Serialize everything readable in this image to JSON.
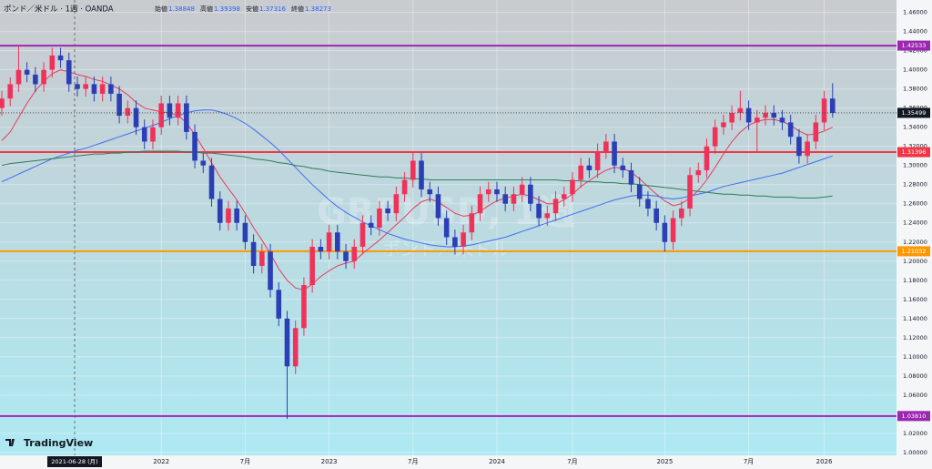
{
  "header": {
    "symbol": "ポンド／米ドル · 1週 · OANDA",
    "ohlc": [
      {
        "label": "始値",
        "value": 1.38848
      },
      {
        "label": "高値",
        "value": 1.39398
      },
      {
        "label": "安値",
        "value": 1.37316
      },
      {
        "label": "終値",
        "value": 1.38273
      }
    ]
  },
  "watermark": {
    "symbol": "GBPUSD, 1週",
    "name": "ポンド／米ドル"
  },
  "logo": "TradingView",
  "chart_data": {
    "type": "candlestick",
    "categories": [
      null,
      null,
      null,
      null,
      null,
      null,
      null,
      null,
      null,
      null,
      null,
      null,
      null,
      null,
      null,
      null,
      null,
      null,
      null,
      "2022",
      null,
      null,
      null,
      null,
      null,
      null,
      null,
      null,
      null,
      "7月",
      null,
      null,
      null,
      null,
      null,
      null,
      null,
      null,
      null,
      "2023",
      null,
      null,
      null,
      null,
      null,
      null,
      null,
      null,
      null,
      "7月",
      null,
      null,
      null,
      null,
      null,
      null,
      null,
      null,
      null,
      "2024",
      null,
      null,
      null,
      null,
      null,
      null,
      null,
      null,
      "7月",
      null,
      null,
      null,
      null,
      null,
      null,
      null,
      null,
      null,
      null,
      "2025",
      null,
      null,
      null,
      null,
      null,
      null,
      null,
      null,
      null,
      "7月",
      null,
      null,
      null,
      null,
      null,
      null,
      null,
      null,
      "2026",
      null
    ],
    "candles": [
      [
        1.36,
        1.378,
        1.352,
        1.37
      ],
      [
        1.37,
        1.392,
        1.362,
        1.385
      ],
      [
        1.385,
        1.425,
        1.377,
        1.4
      ],
      [
        1.4,
        1.408,
        1.387,
        1.395
      ],
      [
        1.395,
        1.403,
        1.377,
        1.385
      ],
      [
        1.385,
        1.408,
        1.377,
        1.4
      ],
      [
        1.4,
        1.423,
        1.392,
        1.415
      ],
      [
        1.415,
        1.423,
        1.402,
        1.41
      ],
      [
        1.41,
        1.418,
        1.377,
        1.385
      ],
      [
        1.385,
        1.393,
        1.372,
        1.38
      ],
      [
        1.38,
        1.393,
        1.372,
        1.385
      ],
      [
        1.385,
        1.393,
        1.367,
        1.375
      ],
      [
        1.375,
        1.393,
        1.367,
        1.385
      ],
      [
        1.385,
        1.393,
        1.367,
        1.375
      ],
      [
        1.375,
        1.383,
        1.344,
        1.352
      ],
      [
        1.352,
        1.368,
        1.344,
        1.36
      ],
      [
        1.36,
        1.368,
        1.332,
        1.34
      ],
      [
        1.34,
        1.348,
        1.317,
        1.325
      ],
      [
        1.325,
        1.348,
        1.317,
        1.34
      ],
      [
        1.34,
        1.373,
        1.332,
        1.365
      ],
      [
        1.365,
        1.373,
        1.342,
        1.35
      ],
      [
        1.35,
        1.373,
        1.342,
        1.365
      ],
      [
        1.365,
        1.373,
        1.327,
        1.335
      ],
      [
        1.335,
        1.343,
        1.297,
        1.305
      ],
      [
        1.305,
        1.313,
        1.292,
        1.3
      ],
      [
        1.3,
        1.308,
        1.257,
        1.265
      ],
      [
        1.265,
        1.273,
        1.232,
        1.24
      ],
      [
        1.24,
        1.263,
        1.232,
        1.255
      ],
      [
        1.255,
        1.263,
        1.232,
        1.24
      ],
      [
        1.24,
        1.248,
        1.212,
        1.22
      ],
      [
        1.22,
        1.228,
        1.187,
        1.195
      ],
      [
        1.195,
        1.218,
        1.187,
        1.21
      ],
      [
        1.21,
        1.218,
        1.162,
        1.17
      ],
      [
        1.17,
        1.178,
        1.132,
        1.14
      ],
      [
        1.14,
        1.148,
        1.035,
        1.09
      ],
      [
        1.09,
        1.138,
        1.082,
        1.13
      ],
      [
        1.13,
        1.183,
        1.122,
        1.175
      ],
      [
        1.175,
        1.223,
        1.167,
        1.215
      ],
      [
        1.215,
        1.223,
        1.202,
        1.21
      ],
      [
        1.21,
        1.238,
        1.202,
        1.23
      ],
      [
        1.23,
        1.238,
        1.202,
        1.21
      ],
      [
        1.21,
        1.218,
        1.192,
        1.2
      ],
      [
        1.2,
        1.223,
        1.192,
        1.215
      ],
      [
        1.215,
        1.248,
        1.207,
        1.24
      ],
      [
        1.24,
        1.248,
        1.227,
        1.235
      ],
      [
        1.235,
        1.263,
        1.227,
        1.255
      ],
      [
        1.255,
        1.263,
        1.242,
        1.25
      ],
      [
        1.25,
        1.278,
        1.242,
        1.27
      ],
      [
        1.27,
        1.293,
        1.262,
        1.285
      ],
      [
        1.285,
        1.313,
        1.277,
        1.305
      ],
      [
        1.305,
        1.313,
        1.267,
        1.275
      ],
      [
        1.275,
        1.283,
        1.262,
        1.27
      ],
      [
        1.27,
        1.278,
        1.237,
        1.245
      ],
      [
        1.245,
        1.253,
        1.217,
        1.225
      ],
      [
        1.225,
        1.233,
        1.207,
        1.215
      ],
      [
        1.215,
        1.238,
        1.207,
        1.23
      ],
      [
        1.23,
        1.258,
        1.222,
        1.25
      ],
      [
        1.25,
        1.278,
        1.242,
        1.27
      ],
      [
        1.27,
        1.283,
        1.262,
        1.275
      ],
      [
        1.275,
        1.283,
        1.262,
        1.27
      ],
      [
        1.27,
        1.278,
        1.252,
        1.26
      ],
      [
        1.26,
        1.278,
        1.252,
        1.27
      ],
      [
        1.27,
        1.288,
        1.262,
        1.28
      ],
      [
        1.28,
        1.288,
        1.252,
        1.26
      ],
      [
        1.26,
        1.268,
        1.237,
        1.245
      ],
      [
        1.245,
        1.258,
        1.237,
        1.25
      ],
      [
        1.25,
        1.273,
        1.242,
        1.265
      ],
      [
        1.265,
        1.278,
        1.257,
        1.27
      ],
      [
        1.27,
        1.293,
        1.262,
        1.285
      ],
      [
        1.285,
        1.308,
        1.277,
        1.3
      ],
      [
        1.3,
        1.308,
        1.287,
        1.295
      ],
      [
        1.295,
        1.323,
        1.287,
        1.315
      ],
      [
        1.315,
        1.333,
        1.307,
        1.325
      ],
      [
        1.325,
        1.333,
        1.292,
        1.3
      ],
      [
        1.3,
        1.308,
        1.287,
        1.295
      ],
      [
        1.295,
        1.303,
        1.272,
        1.28
      ],
      [
        1.28,
        1.288,
        1.257,
        1.265
      ],
      [
        1.265,
        1.273,
        1.247,
        1.255
      ],
      [
        1.255,
        1.263,
        1.232,
        1.24
      ],
      [
        1.24,
        1.248,
        1.21,
        1.22
      ],
      [
        1.22,
        1.253,
        1.212,
        1.245
      ],
      [
        1.245,
        1.263,
        1.237,
        1.255
      ],
      [
        1.255,
        1.298,
        1.247,
        1.29
      ],
      [
        1.29,
        1.303,
        1.282,
        1.295
      ],
      [
        1.295,
        1.328,
        1.287,
        1.32
      ],
      [
        1.32,
        1.348,
        1.312,
        1.34
      ],
      [
        1.34,
        1.353,
        1.332,
        1.345
      ],
      [
        1.345,
        1.363,
        1.337,
        1.355
      ],
      [
        1.355,
        1.378,
        1.347,
        1.36
      ],
      [
        1.36,
        1.368,
        1.337,
        1.345
      ],
      [
        1.345,
        1.358,
        1.315,
        1.35
      ],
      [
        1.35,
        1.363,
        1.342,
        1.355
      ],
      [
        1.355,
        1.363,
        1.342,
        1.35
      ],
      [
        1.35,
        1.358,
        1.337,
        1.345
      ],
      [
        1.345,
        1.353,
        1.322,
        1.33
      ],
      [
        1.33,
        1.338,
        1.302,
        1.31
      ],
      [
        1.31,
        1.333,
        1.302,
        1.325
      ],
      [
        1.325,
        1.353,
        1.317,
        1.345
      ],
      [
        1.345,
        1.378,
        1.337,
        1.37
      ],
      [
        1.37,
        1.386,
        1.35,
        1.355
      ]
    ],
    "up_color": "#f0325a",
    "down_color": "#2a3fb5",
    "series": [
      {
        "color": "#e83b5e",
        "values": [
          1.326,
          1.335,
          1.35,
          1.365,
          1.378,
          1.388,
          1.396,
          1.4,
          1.398,
          1.395,
          1.393,
          1.39,
          1.388,
          1.384,
          1.38,
          1.374,
          1.366,
          1.36,
          1.358,
          1.356,
          1.355,
          1.352,
          1.345,
          1.332,
          1.318,
          1.303,
          1.288,
          1.276,
          1.264,
          1.25,
          1.235,
          1.222,
          1.208,
          1.192,
          1.18,
          1.172,
          1.17,
          1.176,
          1.184,
          1.19,
          1.195,
          1.198,
          1.2,
          1.208,
          1.215,
          1.222,
          1.23,
          1.238,
          1.246,
          1.255,
          1.262,
          1.265,
          1.262,
          1.256,
          1.25,
          1.247,
          1.248,
          1.252,
          1.258,
          1.263,
          1.266,
          1.268,
          1.27,
          1.268,
          1.264,
          1.26,
          1.26,
          1.264,
          1.27,
          1.278,
          1.284,
          1.29,
          1.295,
          1.298,
          1.297,
          1.293,
          1.286,
          1.278,
          1.27,
          1.263,
          1.258,
          1.26,
          1.266,
          1.274,
          1.285,
          1.298,
          1.312,
          1.325,
          1.335,
          1.342,
          1.346,
          1.348,
          1.348,
          1.346,
          1.342,
          1.336,
          1.332,
          1.333,
          1.336,
          1.34
        ]
      },
      {
        "color": "#3d6ef0",
        "values": [
          1.283,
          1.287,
          1.291,
          1.295,
          1.299,
          1.303,
          1.307,
          1.31,
          1.313,
          1.316,
          1.318,
          1.321,
          1.324,
          1.327,
          1.33,
          1.333,
          1.336,
          1.339,
          1.342,
          1.345,
          1.349,
          1.352,
          1.355,
          1.357,
          1.358,
          1.358,
          1.356,
          1.353,
          1.349,
          1.344,
          1.338,
          1.331,
          1.324,
          1.316,
          1.307,
          1.298,
          1.289,
          1.28,
          1.272,
          1.264,
          1.257,
          1.251,
          1.246,
          1.241,
          1.237,
          1.233,
          1.229,
          1.226,
          1.223,
          1.221,
          1.219,
          1.217,
          1.216,
          1.215,
          1.215,
          1.216,
          1.217,
          1.219,
          1.221,
          1.223,
          1.225,
          1.228,
          1.231,
          1.234,
          1.237,
          1.24,
          1.243,
          1.246,
          1.249,
          1.252,
          1.255,
          1.258,
          1.261,
          1.264,
          1.266,
          1.268,
          1.269,
          1.269,
          1.268,
          1.266,
          1.265,
          1.266,
          1.268,
          1.27,
          1.272,
          1.275,
          1.278,
          1.28,
          1.282,
          1.284,
          1.286,
          1.288,
          1.29,
          1.292,
          1.295,
          1.298,
          1.301,
          1.304,
          1.307,
          1.31
        ]
      },
      {
        "color": "#2e7d5b",
        "values": [
          1.3,
          1.302,
          1.303,
          1.304,
          1.305,
          1.306,
          1.307,
          1.308,
          1.309,
          1.31,
          1.311,
          1.312,
          1.312,
          1.313,
          1.313,
          1.314,
          1.314,
          1.315,
          1.315,
          1.315,
          1.315,
          1.315,
          1.314,
          1.314,
          1.313,
          1.313,
          1.312,
          1.311,
          1.31,
          1.309,
          1.307,
          1.306,
          1.305,
          1.303,
          1.302,
          1.3,
          1.299,
          1.297,
          1.296,
          1.294,
          1.293,
          1.292,
          1.291,
          1.29,
          1.289,
          1.288,
          1.288,
          1.287,
          1.287,
          1.286,
          1.286,
          1.285,
          1.285,
          1.285,
          1.285,
          1.285,
          1.285,
          1.285,
          1.285,
          1.285,
          1.285,
          1.285,
          1.285,
          1.285,
          1.285,
          1.285,
          1.285,
          1.284,
          1.284,
          1.284,
          1.283,
          1.283,
          1.282,
          1.282,
          1.281,
          1.281,
          1.28,
          1.279,
          1.278,
          1.277,
          1.276,
          1.275,
          1.274,
          1.273,
          1.272,
          1.271,
          1.27,
          1.27,
          1.269,
          1.269,
          1.268,
          1.268,
          1.267,
          1.267,
          1.267,
          1.266,
          1.266,
          1.266,
          1.267,
          1.268
        ]
      }
    ],
    "ylim": [
      0.997,
      1.473
    ],
    "yticks": [
      {
        "value": 1.0,
        "label": "1.00000"
      },
      {
        "value": 1.02,
        "label": "1.02000"
      },
      {
        "value": 1.04,
        "label": "1.04000"
      },
      {
        "value": 1.06,
        "label": "1.06000"
      },
      {
        "value": 1.08,
        "label": "1.08000"
      },
      {
        "value": 1.1,
        "label": "1.10000"
      },
      {
        "value": 1.12,
        "label": "1.12000"
      },
      {
        "value": 1.14,
        "label": "1.14000"
      },
      {
        "value": 1.16,
        "label": "1.16000"
      },
      {
        "value": 1.18,
        "label": "1.18000"
      },
      {
        "value": 1.2,
        "label": "1.20000"
      },
      {
        "value": 1.22,
        "label": "1.22000"
      },
      {
        "value": 1.24,
        "label": "1.24000"
      },
      {
        "value": 1.26,
        "label": "1.26000"
      },
      {
        "value": 1.28,
        "label": "1.28000"
      },
      {
        "value": 1.3,
        "label": "1.30000"
      },
      {
        "value": 1.32,
        "label": "1.32000"
      },
      {
        "value": 1.34,
        "label": "1.34000"
      },
      {
        "value": 1.36,
        "label": "1.36000"
      },
      {
        "value": 1.38,
        "label": "1.38000"
      },
      {
        "value": 1.4,
        "label": "1.40000"
      },
      {
        "value": 1.42,
        "label": "1.42000"
      },
      {
        "value": 1.44,
        "label": "1.44000"
      },
      {
        "value": 1.46,
        "label": "1.46000"
      }
    ],
    "grid": true,
    "hlines": [
      {
        "value": 1.42533,
        "color": "#9c27b0"
      },
      {
        "value": 1.31396,
        "color": "#f23645"
      },
      {
        "value": 1.21032,
        "color": "#ff9800"
      },
      {
        "value": {
          "value": 1.0381,
          "label": "1.03810"
        },
        "color": "#9c27b0"
      }
    ],
    "last_price": 1.35499,
    "crosshair": "2021-06-28 (月)"
  }
}
